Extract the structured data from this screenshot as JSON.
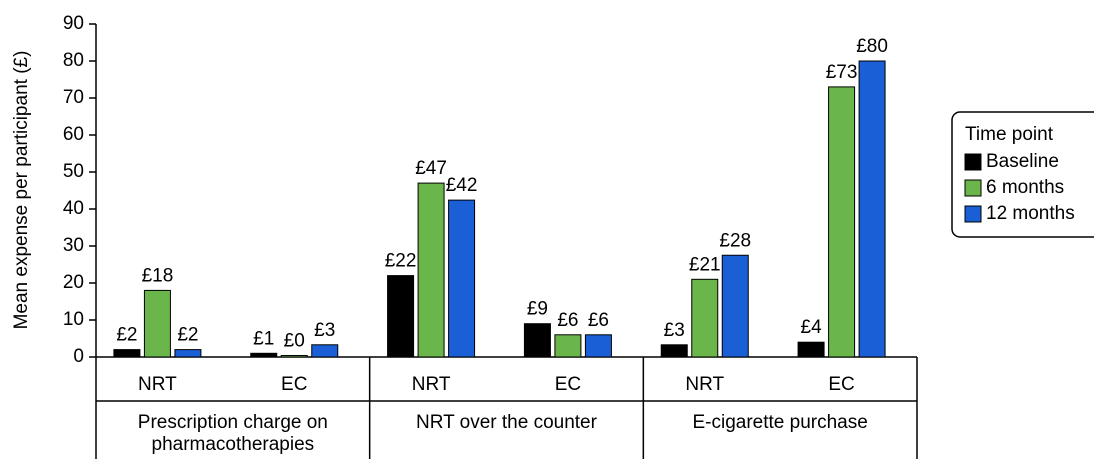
{
  "chart_data": {
    "type": "bar",
    "y_label": "Mean expense per participant (£)",
    "categories": [
      "NRT",
      "EC",
      "NRT",
      "EC",
      "NRT",
      "EC"
    ],
    "groups": [
      "Prescription charge on pharmacotherapies",
      "NRT over the counter",
      "E-cigarette purchase"
    ],
    "legend_title": "Time point",
    "series": [
      {
        "name": "Baseline",
        "color": "#000000",
        "values": [
          2,
          1,
          22,
          9,
          3.3,
          4
        ],
        "value_labels": [
          "£2",
          "£1",
          "£22",
          "£9",
          "£3",
          "£4"
        ]
      },
      {
        "name": "6 months",
        "color": "#6ab64a",
        "values": [
          18,
          0.4,
          47,
          6,
          21,
          73
        ],
        "value_labels": [
          "£18",
          "£0",
          "£47",
          "£6",
          "£21",
          "£73"
        ]
      },
      {
        "name": "12 months",
        "color": "#1a5fd6",
        "values": [
          2,
          3.3,
          42.4,
          6,
          27.5,
          80
        ],
        "value_labels": [
          "£2",
          "£3",
          "£42",
          "£6",
          "£28",
          "£80"
        ]
      }
    ],
    "ylim": [
      0,
      90
    ],
    "yticks": [
      0,
      10,
      20,
      30,
      40,
      50,
      60,
      70,
      80,
      90
    ]
  }
}
